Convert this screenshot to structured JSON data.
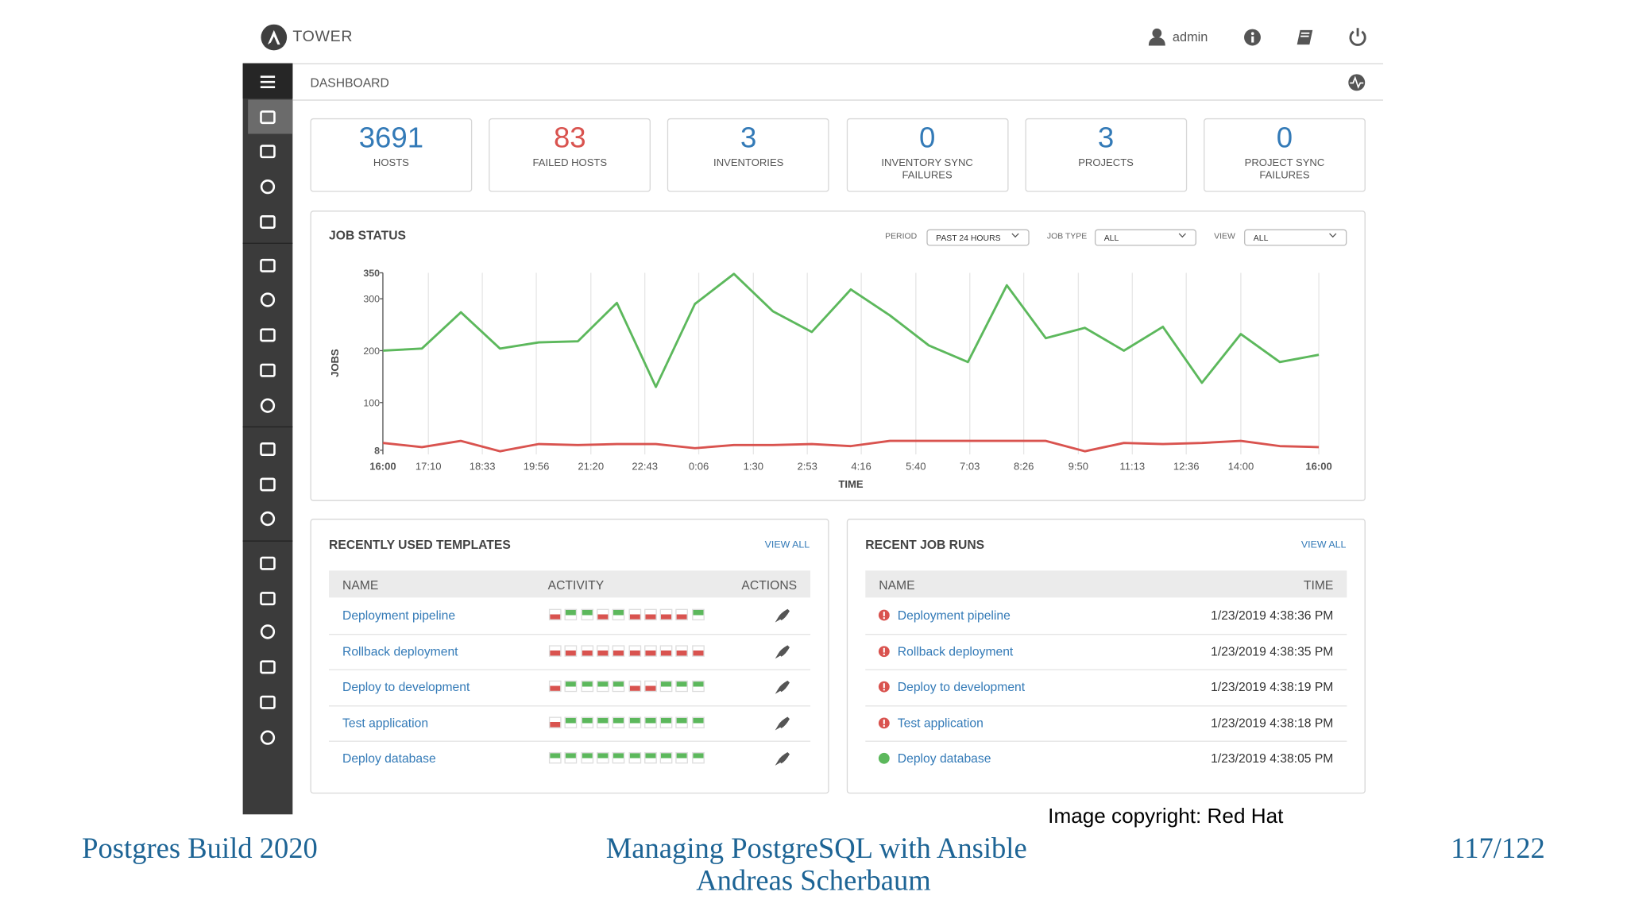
{
  "header": {
    "brand": "TOWER",
    "user": "admin"
  },
  "breadcrumb": "DASHBOARD",
  "stats": [
    {
      "value": 3691,
      "label": "HOSTS",
      "color": "#337ab7"
    },
    {
      "value": 83,
      "label": "FAILED HOSTS",
      "color": "#d9534f"
    },
    {
      "value": 3,
      "label": "INVENTORIES",
      "color": "#337ab7"
    },
    {
      "value": 0,
      "label": "INVENTORY SYNC FAILURES",
      "color": "#337ab7"
    },
    {
      "value": 3,
      "label": "PROJECTS",
      "color": "#337ab7"
    },
    {
      "value": 0,
      "label": "PROJECT SYNC FAILURES",
      "color": "#337ab7"
    }
  ],
  "chart_data": {
    "type": "line",
    "title": "JOB STATUS",
    "filters": [
      {
        "label": "PERIOD",
        "value": "PAST 24 HOURS"
      },
      {
        "label": "JOB TYPE",
        "value": "ALL"
      },
      {
        "label": "VIEW",
        "value": "ALL"
      }
    ],
    "x_label": "TIME",
    "y_label": "JOBS",
    "x": [
      0,
      1,
      2,
      3,
      4,
      5,
      6,
      7,
      8,
      9,
      10,
      11,
      12,
      13,
      14,
      15,
      16,
      17,
      18,
      19,
      20,
      21,
      22,
      23,
      24
    ],
    "xlim": [
      0,
      24
    ],
    "xticks": [
      {
        "value": 0,
        "label": "16:00"
      },
      {
        "value": 1.1667,
        "label": "17:10"
      },
      {
        "value": 2.55,
        "label": "18:33"
      },
      {
        "value": 3.9333,
        "label": "19:56"
      },
      {
        "value": 5.3333,
        "label": "21:20"
      },
      {
        "value": 6.7167,
        "label": "22:43"
      },
      {
        "value": 8.1,
        "label": "0:06"
      },
      {
        "value": 9.5,
        "label": "1:30"
      },
      {
        "value": 10.8833,
        "label": "2:53"
      },
      {
        "value": 12.2667,
        "label": "4:16"
      },
      {
        "value": 13.6667,
        "label": "5:40"
      },
      {
        "value": 15.05,
        "label": "7:03"
      },
      {
        "value": 16.4333,
        "label": "8:26"
      },
      {
        "value": 17.8333,
        "label": "9:50"
      },
      {
        "value": 19.2167,
        "label": "11:13"
      },
      {
        "value": 20.6,
        "label": "12:36"
      },
      {
        "value": 22,
        "label": "14:00"
      },
      {
        "value": 24,
        "label": "16:00"
      }
    ],
    "ylim": [
      0,
      350
    ],
    "yticks": [
      8,
      100,
      200,
      300,
      350
    ],
    "grid": true,
    "series": [
      {
        "color": "#5cb85c",
        "values": [
          200,
          204,
          274,
          204,
          216,
          218,
          292,
          130,
          290,
          348,
          276,
          236,
          318,
          268,
          210,
          178,
          326,
          224,
          244,
          200,
          246,
          138,
          232,
          178,
          192
        ]
      },
      {
        "color": "#d9534f",
        "values": [
          22,
          14,
          26,
          6,
          20,
          18,
          20,
          20,
          12,
          18,
          18,
          20,
          16,
          26,
          26,
          26,
          26,
          26,
          6,
          22,
          20,
          22,
          26,
          16,
          14
        ]
      }
    ]
  },
  "templates": {
    "title": "RECENTLY USED TEMPLATES",
    "view_all": "VIEW ALL",
    "columns": [
      "NAME",
      "ACTIVITY",
      "ACTIONS"
    ],
    "rows": [
      {
        "name": "Deployment pipeline",
        "activity": [
          "failed",
          "successful",
          "successful",
          "failed",
          "successful",
          "failed",
          "failed",
          "failed",
          "failed",
          "successful"
        ]
      },
      {
        "name": "Rollback deployment",
        "activity": [
          "failed",
          "failed",
          "failed",
          "failed",
          "failed",
          "failed",
          "failed",
          "failed",
          "failed",
          "failed"
        ]
      },
      {
        "name": "Deploy to development",
        "activity": [
          "failed",
          "successful",
          "successful",
          "successful",
          "successful",
          "failed",
          "failed",
          "successful",
          "successful",
          "successful"
        ]
      },
      {
        "name": "Test application",
        "activity": [
          "failed",
          "successful",
          "successful",
          "successful",
          "successful",
          "successful",
          "successful",
          "successful",
          "successful",
          "successful"
        ]
      },
      {
        "name": "Deploy database",
        "activity": [
          "successful",
          "successful",
          "successful",
          "successful",
          "successful",
          "successful",
          "successful",
          "successful",
          "successful",
          "successful"
        ]
      }
    ]
  },
  "job_runs": {
    "title": "RECENT JOB RUNS",
    "view_all": "VIEW ALL",
    "columns": [
      "NAME",
      "TIME"
    ],
    "rows": [
      {
        "name": "Deployment pipeline",
        "time": "1/23/2019 4:38:36 PM",
        "status": "failed"
      },
      {
        "name": "Rollback deployment",
        "time": "1/23/2019 4:38:35 PM",
        "status": "failed"
      },
      {
        "name": "Deploy to development",
        "time": "1/23/2019 4:38:19 PM",
        "status": "failed"
      },
      {
        "name": "Test application",
        "time": "1/23/2019 4:38:18 PM",
        "status": "failed"
      },
      {
        "name": "Deploy database",
        "time": "1/23/2019 4:38:05 PM",
        "status": "successful"
      }
    ]
  },
  "copyright": "Image copyright: Red Hat",
  "footer": {
    "left": "Postgres Build 2020",
    "title": "Managing PostgreSQL with Ansible",
    "author": "Andreas Scherbaum",
    "page": "117/122"
  }
}
